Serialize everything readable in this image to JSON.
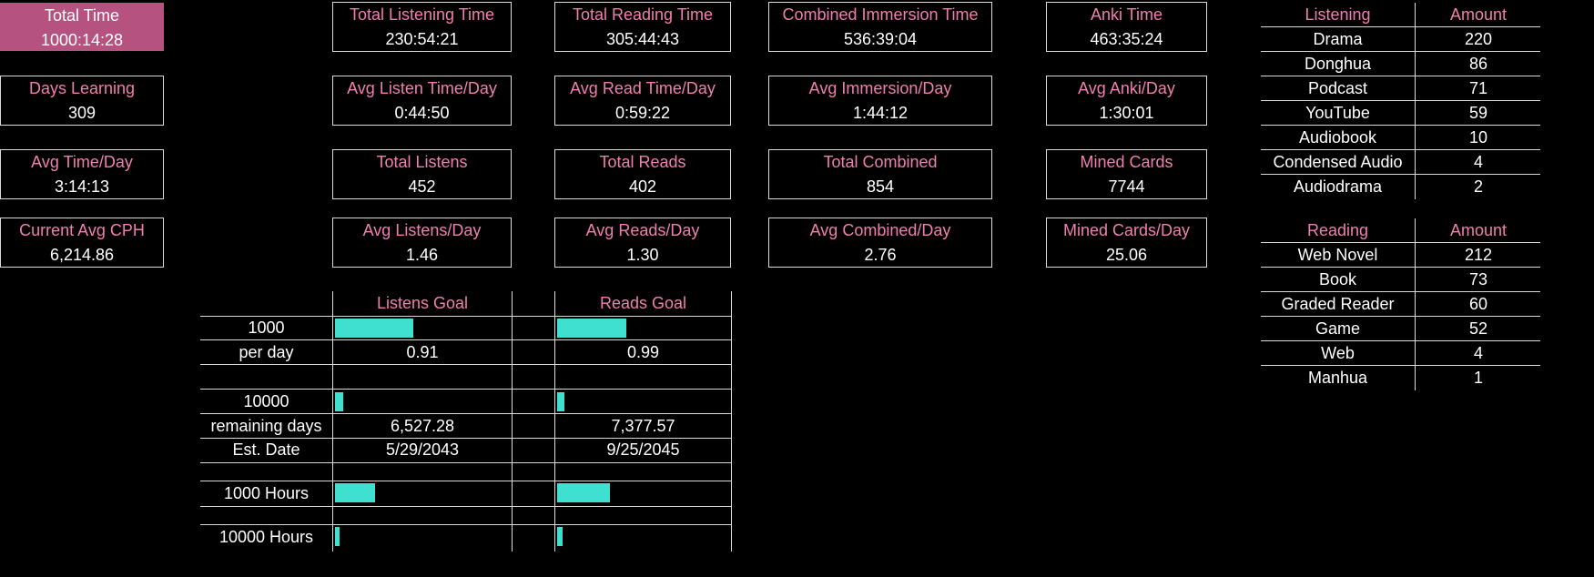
{
  "stats": {
    "col1": [
      {
        "label": "Total Time",
        "value": "1000:14:28"
      },
      {
        "label": "Days Learning",
        "value": "309"
      },
      {
        "label": "Avg Time/Day",
        "value": "3:14:13"
      },
      {
        "label": "Current Avg CPH",
        "value": "6,214.86"
      }
    ],
    "col2": [
      {
        "label": "Total Listening Time",
        "value": "230:54:21"
      },
      {
        "label": "Avg Listen Time/Day",
        "value": "0:44:50"
      },
      {
        "label": "Total Listens",
        "value": "452"
      },
      {
        "label": "Avg Listens/Day",
        "value": "1.46"
      }
    ],
    "col3": [
      {
        "label": "Total Reading Time",
        "value": "305:44:43"
      },
      {
        "label": "Avg Read Time/Day",
        "value": "0:59:22"
      },
      {
        "label": "Total Reads",
        "value": "402"
      },
      {
        "label": "Avg Reads/Day",
        "value": "1.30"
      }
    ],
    "col4": [
      {
        "label": "Combined Immersion Time",
        "value": "536:39:04"
      },
      {
        "label": "Avg Immersion/Day",
        "value": "1:44:12"
      },
      {
        "label": "Total Combined",
        "value": "854"
      },
      {
        "label": "Avg Combined/Day",
        "value": "2.76"
      }
    ],
    "col5": [
      {
        "label": "Anki Time",
        "value": "463:35:24"
      },
      {
        "label": "Avg Anki/Day",
        "value": "1:30:01"
      },
      {
        "label": "Mined Cards",
        "value": "7744"
      },
      {
        "label": "Mined Cards/Day",
        "value": "25.06"
      }
    ]
  },
  "goals": {
    "listens_header": "Listens Goal",
    "reads_header": "Reads Goal",
    "row_1000": "1000",
    "row_per_day": "per day",
    "row_10000": "10000",
    "row_remaining": "remaining days",
    "row_est_date": "Est. Date",
    "row_1000_hours": "1000 Hours",
    "row_10000_hours": "10000 Hours",
    "listens": {
      "goal_1000_progress": 0.452,
      "per_day": "0.91",
      "goal_10000_progress": 0.045,
      "remaining_days": "6,527.28",
      "est_date": "5/29/2043",
      "hours_1000_progress": 0.231,
      "hours_10000_progress": 0.023
    },
    "reads": {
      "goal_1000_progress": 0.402,
      "per_day": "0.99",
      "goal_10000_progress": 0.04,
      "remaining_days": "7,377.57",
      "est_date": "9/25/2045",
      "hours_1000_progress": 0.306,
      "hours_10000_progress": 0.031
    }
  },
  "listening_table": {
    "header_category": "Listening",
    "header_amount": "Amount",
    "rows": [
      {
        "name": "Drama",
        "amount": "220"
      },
      {
        "name": "Donghua",
        "amount": "86"
      },
      {
        "name": "Podcast",
        "amount": "71"
      },
      {
        "name": "YouTube",
        "amount": "59"
      },
      {
        "name": "Audiobook",
        "amount": "10"
      },
      {
        "name": "Condensed Audio",
        "amount": "4"
      },
      {
        "name": "Audiodrama",
        "amount": "2"
      }
    ]
  },
  "reading_table": {
    "header_category": "Reading",
    "header_amount": "Amount",
    "rows": [
      {
        "name": "Web Novel",
        "amount": "212"
      },
      {
        "name": "Book",
        "amount": "73"
      },
      {
        "name": "Graded Reader",
        "amount": "60"
      },
      {
        "name": "Game",
        "amount": "52"
      },
      {
        "name": "Web",
        "amount": "4"
      },
      {
        "name": "Manhua",
        "amount": "1"
      }
    ]
  },
  "colors": {
    "accent": "#b5527f",
    "label": "#f07eb0",
    "bar": "#40e0d0",
    "border": "#d9d9d9"
  }
}
